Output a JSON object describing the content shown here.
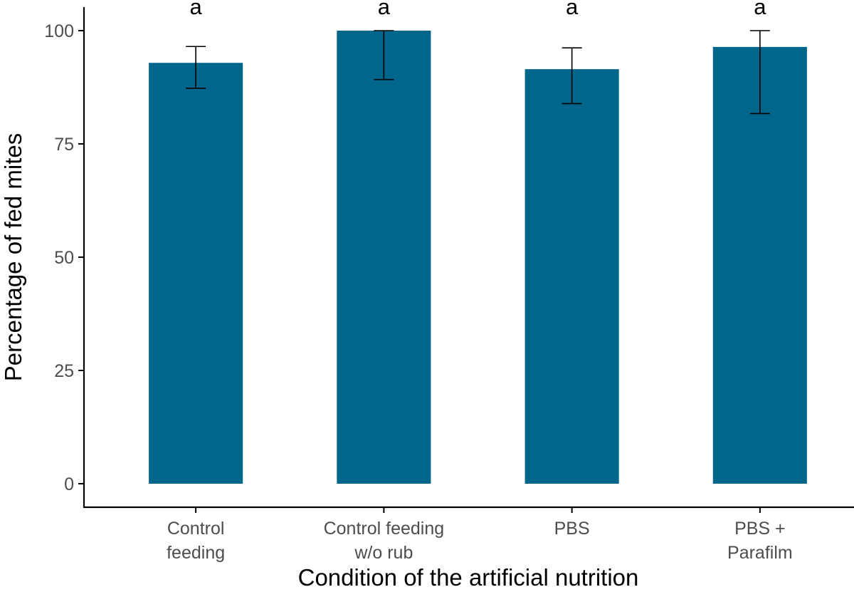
{
  "chart_data": {
    "type": "bar",
    "title": "",
    "xlabel": "Condition of the artificial nutrition",
    "ylabel": "Percentage of fed mites",
    "categories": [
      [
        "Control",
        "feeding"
      ],
      [
        "Control feeding",
        "w/o rub"
      ],
      [
        "PBS"
      ],
      [
        "PBS +",
        "Parafilm"
      ]
    ],
    "values": [
      92.9,
      100,
      91.5,
      96.4
    ],
    "error_low": [
      87.3,
      89.2,
      83.9,
      81.7
    ],
    "error_high": [
      96.5,
      100,
      96.2,
      100
    ],
    "significance_labels": [
      "a",
      "a",
      "a",
      "a"
    ],
    "yticks": [
      0,
      25,
      50,
      75,
      100
    ],
    "ytick_labels": [
      "0",
      "25",
      "50",
      "75",
      "100"
    ],
    "ylim": [
      -5,
      105
    ],
    "grid": false,
    "bar_color": "#00668c",
    "error_bar_color": "#000000"
  }
}
